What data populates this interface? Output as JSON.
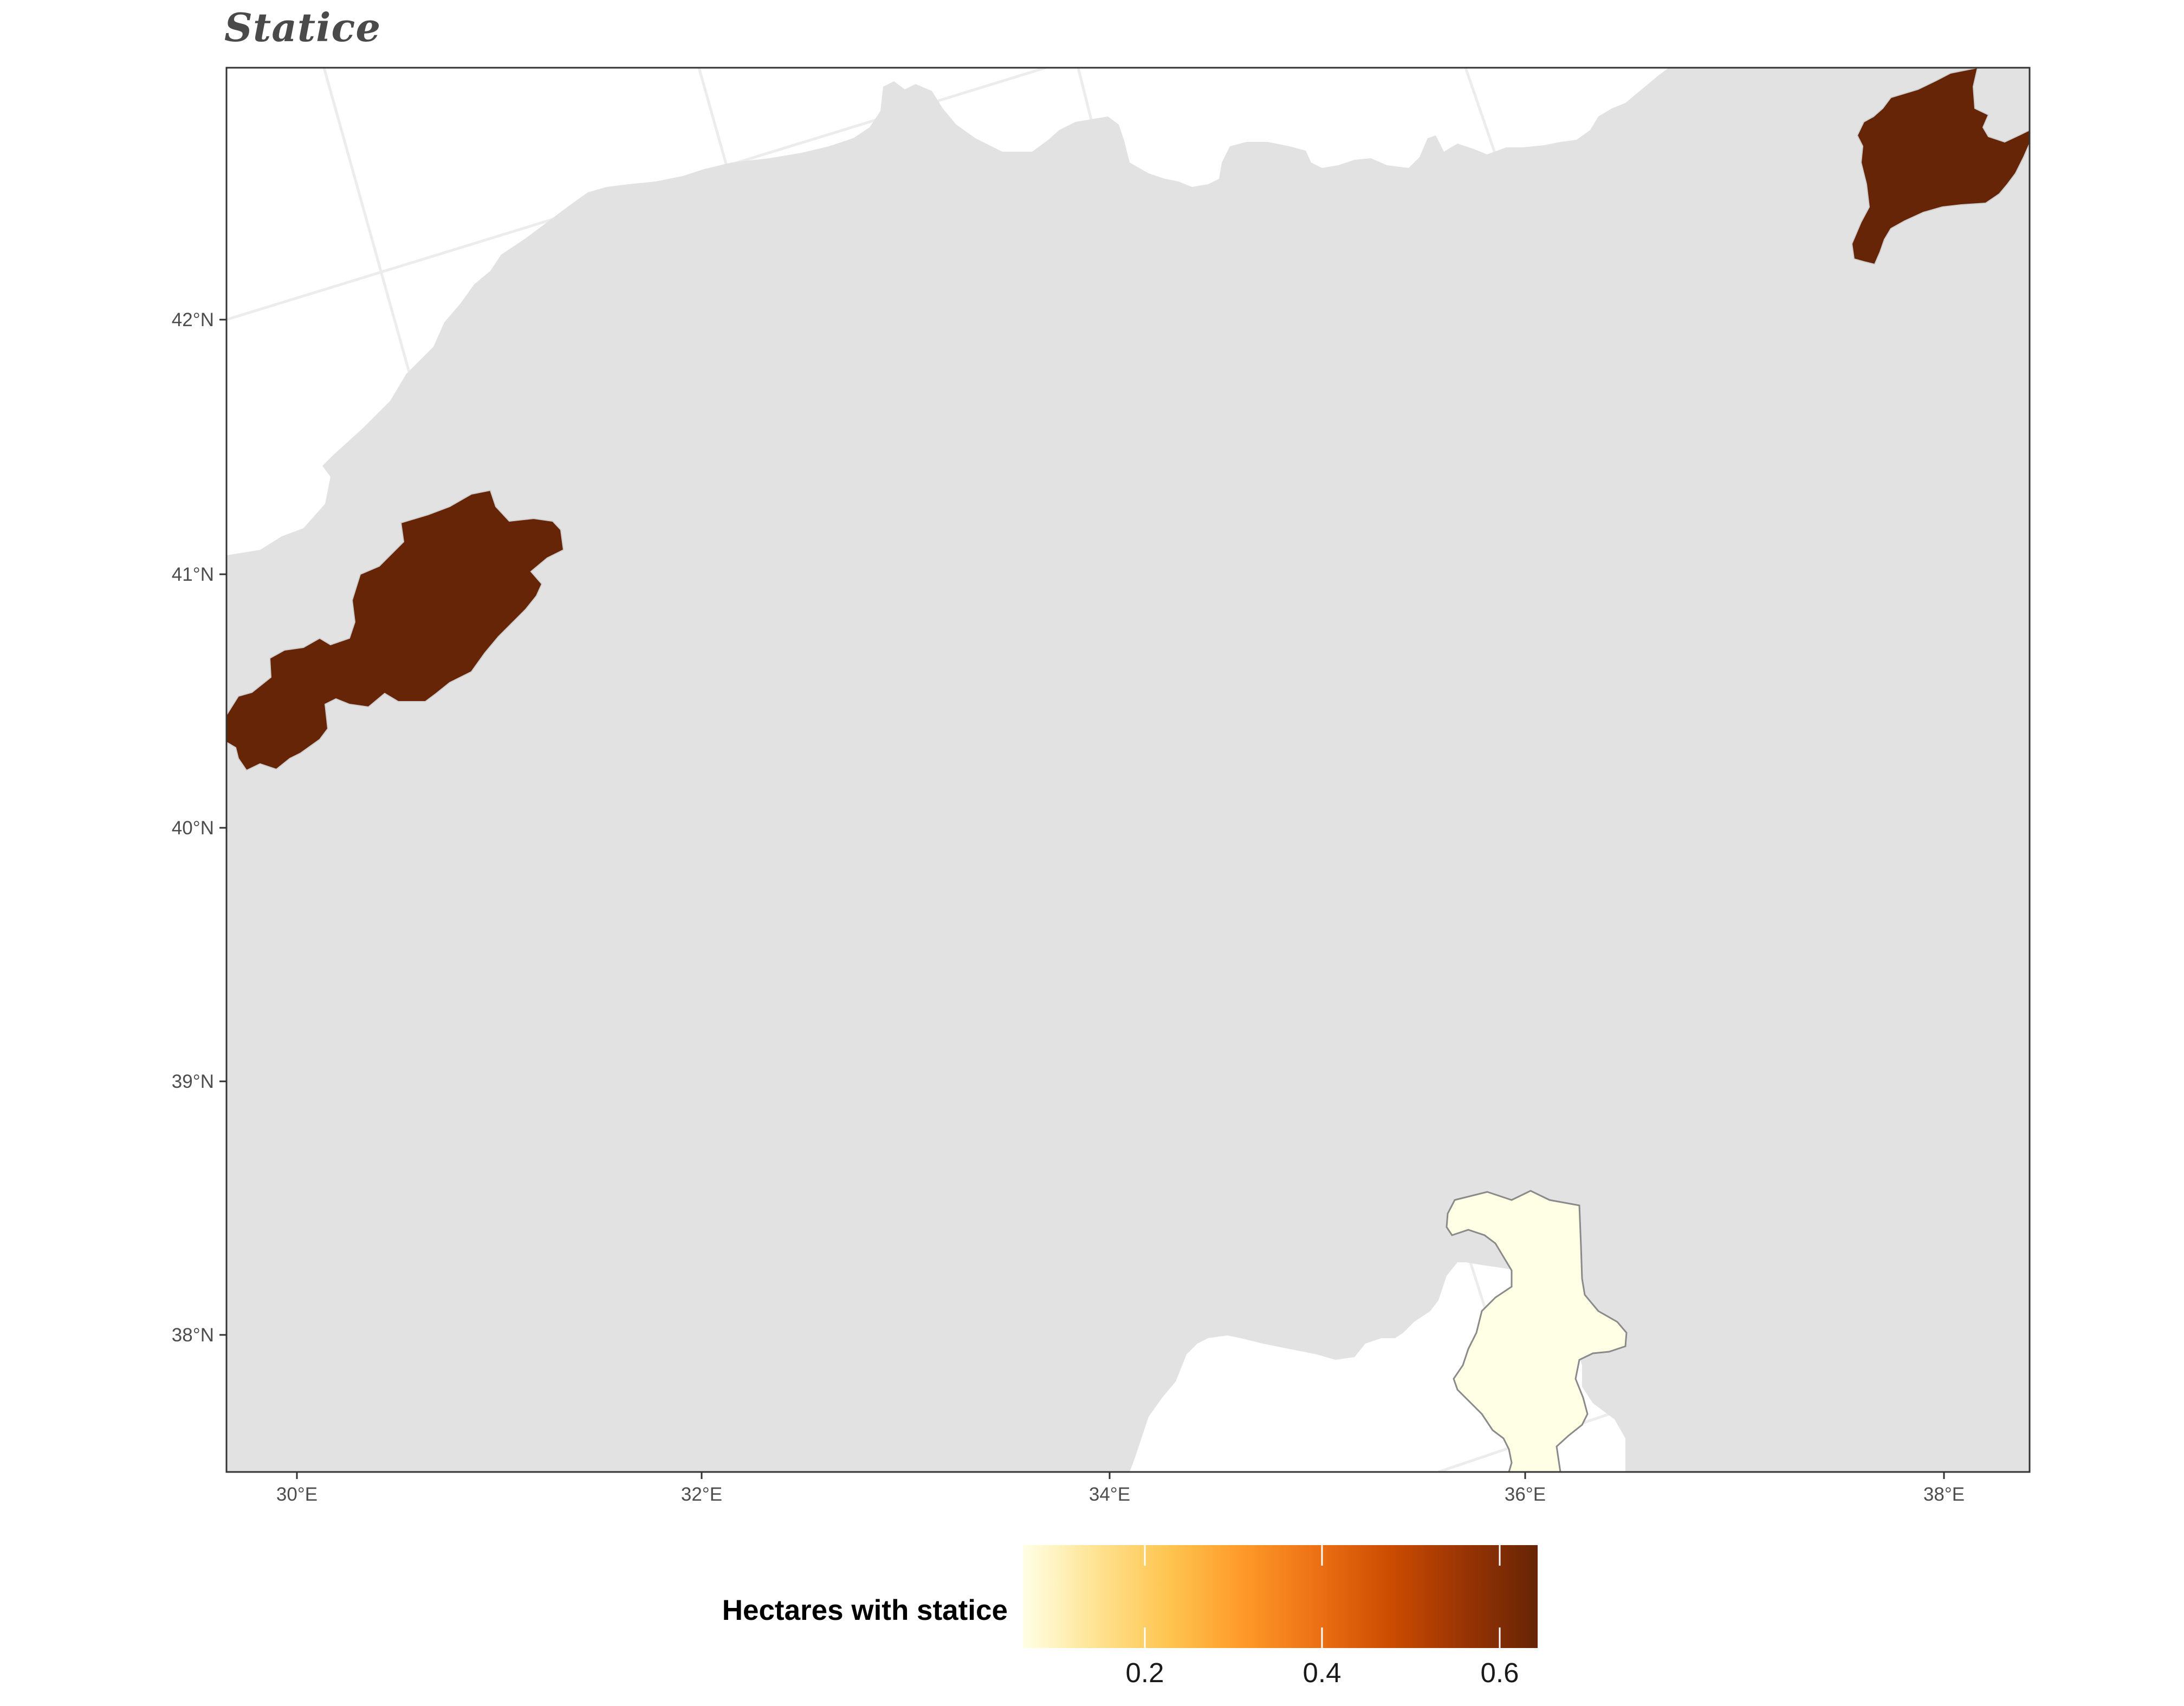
{
  "title": "Statice",
  "map": {
    "land_color": "#e2e2e2",
    "sea_color": "#ffffff",
    "graticule_color": "#ececec",
    "regions": [
      {
        "name": "",
        "value": 0.64,
        "color": "#662506"
      },
      {
        "name": "",
        "value": 0.64,
        "color": "#662506"
      },
      {
        "name": "",
        "value": 0.05,
        "color": "#ffffe5"
      }
    ]
  },
  "axes": {
    "x_ticks": [
      "30°E",
      "32°E",
      "34°E",
      "36°E",
      "38°E"
    ],
    "y_ticks": [
      "42°N",
      "41°N",
      "40°N",
      "39°N",
      "38°N"
    ]
  },
  "legend": {
    "title": "Hectares with statice",
    "tick_labels": [
      "0.2",
      "0.4",
      "0.6"
    ],
    "range": [
      0.05,
      0.64
    ],
    "colors": [
      "#ffffe5",
      "#fee391",
      "#fec44f",
      "#fe9929",
      "#ec7014",
      "#cc4c02",
      "#993404",
      "#662506"
    ]
  }
}
